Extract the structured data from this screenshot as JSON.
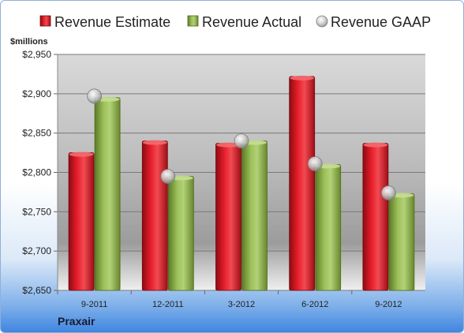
{
  "chart_data": {
    "type": "bar",
    "unit_label": "$millions",
    "company": "Praxair",
    "categories": [
      "9-2011",
      "12-2011",
      "3-2012",
      "6-2012",
      "9-2012"
    ],
    "series": [
      {
        "name": "Revenue Estimate",
        "kind": "bar",
        "color": "#d0101e",
        "values": [
          2825,
          2840,
          2837,
          2922,
          2837
        ]
      },
      {
        "name": "Revenue Actual",
        "kind": "bar",
        "color": "#8aac48",
        "values": [
          2895,
          2795,
          2840,
          2810,
          2773
        ]
      },
      {
        "name": "Revenue GAAP",
        "kind": "marker",
        "color": "#c8c8c8",
        "values": [
          2897,
          2795,
          2840,
          2811,
          2774
        ]
      }
    ],
    "ylim": [
      2650,
      2950
    ],
    "yticks": [
      "$2,650",
      "$2,700",
      "$2,750",
      "$2,800",
      "$2,850",
      "$2,900",
      "$2,950"
    ],
    "grid": true,
    "legend_position": "top"
  }
}
